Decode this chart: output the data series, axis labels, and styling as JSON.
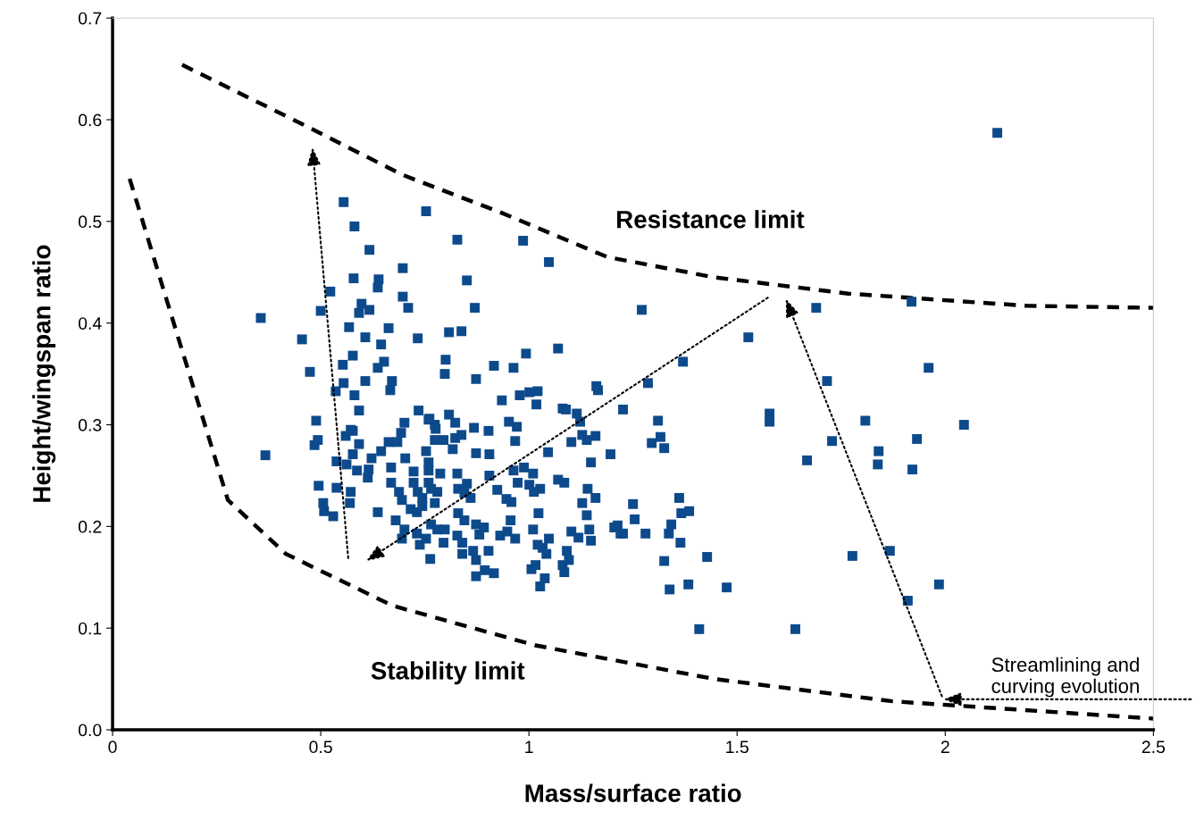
{
  "chart_data": {
    "type": "scatter",
    "xlabel": "Mass/surface ratio",
    "ylabel": "Height/wingspan ratio",
    "xlim": [
      0,
      2.5
    ],
    "ylim": [
      0,
      0.7
    ],
    "xticks": [
      0,
      0.5,
      1,
      1.5,
      2,
      2.5
    ],
    "yticks": [
      {
        "value": 0,
        "label": "0.0"
      },
      0.1,
      0.2,
      0.3,
      0.4,
      0.5,
      0.6,
      0.7
    ],
    "grid": false,
    "series": [
      {
        "color": "#0d4a8c",
        "marker": "square",
        "x": [
          2.125,
          1.919,
          1.69,
          1.527,
          1.96,
          1.716,
          1.578,
          1.578,
          1.808,
          2.045,
          1.728,
          1.932,
          1.84,
          1.838,
          1.668,
          1.921,
          1.777,
          1.867,
          1.91,
          1.985,
          1.64,
          1.475,
          1.428,
          1.37,
          1.286,
          1.226,
          1.31,
          1.295,
          1.316,
          1.325,
          1.196,
          1.271,
          1.25,
          1.254,
          1.213,
          1.226,
          1.28,
          1.361,
          1.366,
          1.385,
          1.342,
          1.336,
          1.364,
          1.325,
          1.338,
          1.383,
          1.409,
          0.356,
          0.455,
          0.474,
          0.5,
          0.523,
          0.555,
          0.581,
          0.617,
          0.579,
          0.639,
          0.637,
          0.598,
          0.592,
          0.617,
          0.568,
          0.663,
          0.607,
          0.645,
          0.697,
          0.697,
          0.71,
          0.753,
          0.828,
          0.986,
          1.048,
          0.851,
          0.87,
          0.733,
          0.808,
          0.838,
          0.577,
          0.553,
          0.652,
          0.637,
          0.8,
          0.798,
          0.873,
          0.916,
          0.963,
          0.993,
          1.07,
          0.555,
          0.607,
          0.671,
          0.667,
          0.536,
          0.581,
          0.592,
          0.489,
          0.935,
          0.978,
          1.001,
          1.021,
          1.018,
          1.162,
          1.166,
          1.081,
          1.089,
          1.115,
          1.123,
          0.735,
          0.761,
          0.774,
          0.808,
          0.823,
          0.868,
          0.903,
          0.952,
          0.971,
          0.701,
          0.572,
          0.485,
          0.493,
          0.367,
          0.56,
          0.577,
          0.592,
          0.577,
          0.538,
          0.562,
          0.622,
          0.615,
          0.613,
          0.587,
          0.495,
          0.538,
          0.572,
          0.57,
          0.506,
          0.508,
          0.53,
          0.637,
          0.645,
          0.663,
          0.684,
          0.693,
          0.669,
          0.703,
          0.669,
          0.688,
          0.695,
          0.759,
          0.776,
          0.774,
          0.753,
          0.795,
          0.823,
          0.838,
          0.817,
          0.873,
          0.905,
          0.967,
          1.046,
          1.102,
          1.128,
          1.16,
          1.139,
          1.149,
          0.723,
          0.759,
          0.759,
          0.787,
          0.723,
          0.733,
          0.744,
          0.765,
          0.759,
          0.78,
          0.716,
          0.731,
          0.744,
          0.774,
          0.68,
          0.701,
          0.695,
          0.731,
          0.738,
          0.753,
          0.765,
          0.78,
          0.798,
          0.795,
          0.763,
          0.828,
          0.851,
          0.83,
          0.86,
          0.845,
          0.83,
          0.845,
          0.828,
          0.84,
          0.84,
          0.873,
          0.892,
          0.881,
          0.866,
          0.873,
          0.903,
          0.873,
          0.894,
          0.916,
          0.905,
          0.924,
          0.946,
          0.958,
          0.963,
          0.988,
          1.01,
          0.973,
          1.001,
          1.012,
          1.027,
          0.956,
          0.948,
          0.931,
          0.967,
          1.023,
          1.01,
          1.021,
          1.033,
          1.048,
          1.042,
          1.006,
          1.016,
          1.038,
          1.027,
          1.07,
          1.085,
          1.141,
          1.16,
          1.128,
          1.139,
          1.102,
          1.119,
          1.145,
          1.149,
          1.091,
          1.096,
          1.081,
          1.085,
          1.205,
          1.22
        ],
        "values": [
          0.587,
          0.421,
          0.415,
          0.386,
          0.356,
          0.343,
          0.311,
          0.303,
          0.304,
          0.3,
          0.284,
          0.286,
          0.274,
          0.261,
          0.265,
          0.256,
          0.171,
          0.176,
          0.127,
          0.143,
          0.099,
          0.14,
          0.17,
          0.362,
          0.341,
          0.315,
          0.304,
          0.282,
          0.288,
          0.277,
          0.271,
          0.413,
          0.222,
          0.207,
          0.201,
          0.193,
          0.193,
          0.228,
          0.213,
          0.215,
          0.202,
          0.193,
          0.184,
          0.166,
          0.138,
          0.143,
          0.099,
          0.405,
          0.384,
          0.352,
          0.412,
          0.431,
          0.519,
          0.495,
          0.472,
          0.444,
          0.443,
          0.435,
          0.419,
          0.41,
          0.413,
          0.396,
          0.395,
          0.386,
          0.379,
          0.454,
          0.426,
          0.415,
          0.51,
          0.482,
          0.481,
          0.46,
          0.442,
          0.415,
          0.385,
          0.391,
          0.392,
          0.368,
          0.359,
          0.362,
          0.356,
          0.364,
          0.35,
          0.345,
          0.358,
          0.356,
          0.37,
          0.375,
          0.341,
          0.343,
          0.343,
          0.334,
          0.333,
          0.329,
          0.314,
          0.304,
          0.324,
          0.329,
          0.332,
          0.333,
          0.32,
          0.338,
          0.334,
          0.316,
          0.315,
          0.311,
          0.303,
          0.314,
          0.306,
          0.3,
          0.31,
          0.302,
          0.297,
          0.294,
          0.303,
          0.298,
          0.302,
          0.295,
          0.28,
          0.285,
          0.27,
          0.289,
          0.294,
          0.281,
          0.271,
          0.264,
          0.261,
          0.267,
          0.256,
          0.248,
          0.255,
          0.24,
          0.238,
          0.234,
          0.223,
          0.223,
          0.215,
          0.21,
          0.214,
          0.274,
          0.283,
          0.283,
          0.292,
          0.258,
          0.267,
          0.243,
          0.234,
          0.226,
          0.305,
          0.296,
          0.285,
          0.274,
          0.285,
          0.287,
          0.29,
          0.276,
          0.272,
          0.271,
          0.284,
          0.273,
          0.283,
          0.29,
          0.289,
          0.285,
          0.263,
          0.254,
          0.263,
          0.255,
          0.252,
          0.243,
          0.234,
          0.228,
          0.237,
          0.243,
          0.234,
          0.217,
          0.214,
          0.22,
          0.223,
          0.206,
          0.197,
          0.188,
          0.193,
          0.182,
          0.188,
          0.202,
          0.197,
          0.197,
          0.184,
          0.168,
          0.252,
          0.242,
          0.237,
          0.228,
          0.233,
          0.213,
          0.206,
          0.191,
          0.184,
          0.173,
          0.202,
          0.199,
          0.192,
          0.176,
          0.167,
          0.176,
          0.151,
          0.157,
          0.154,
          0.25,
          0.236,
          0.227,
          0.224,
          0.255,
          0.258,
          0.252,
          0.243,
          0.241,
          0.234,
          0.237,
          0.206,
          0.195,
          0.191,
          0.188,
          0.213,
          0.197,
          0.182,
          0.179,
          0.188,
          0.173,
          0.158,
          0.162,
          0.149,
          0.141,
          0.246,
          0.243,
          0.237,
          0.228,
          0.223,
          0.211,
          0.195,
          0.189,
          0.197,
          0.186,
          0.176,
          0.167,
          0.162,
          0.155,
          0.199,
          0.193
        ]
      },
      {
        "type": "line",
        "color": "#000000",
        "line_style": "dashed",
        "marker": "none",
        "x": [
          0.167,
          0.459,
          0.695,
          0.931,
          1.188,
          1.445,
          1.767,
          2.196,
          2.5
        ],
        "values": [
          0.654,
          0.595,
          0.546,
          0.509,
          0.465,
          0.445,
          0.429,
          0.417,
          0.415
        ]
      },
      {
        "type": "line",
        "color": "#000000",
        "line_style": "dashed",
        "marker": "none",
        "x": [
          0.041,
          0.126,
          0.277,
          0.416,
          0.673,
          1.016,
          1.445,
          1.874,
          2.5
        ],
        "values": [
          0.542,
          0.428,
          0.226,
          0.173,
          0.122,
          0.083,
          0.05,
          0.028,
          0.011
        ]
      }
    ],
    "annotations": [
      "Resistance limit",
      "Stability limit",
      "Streamlining and\ncurving evolution"
    ]
  }
}
